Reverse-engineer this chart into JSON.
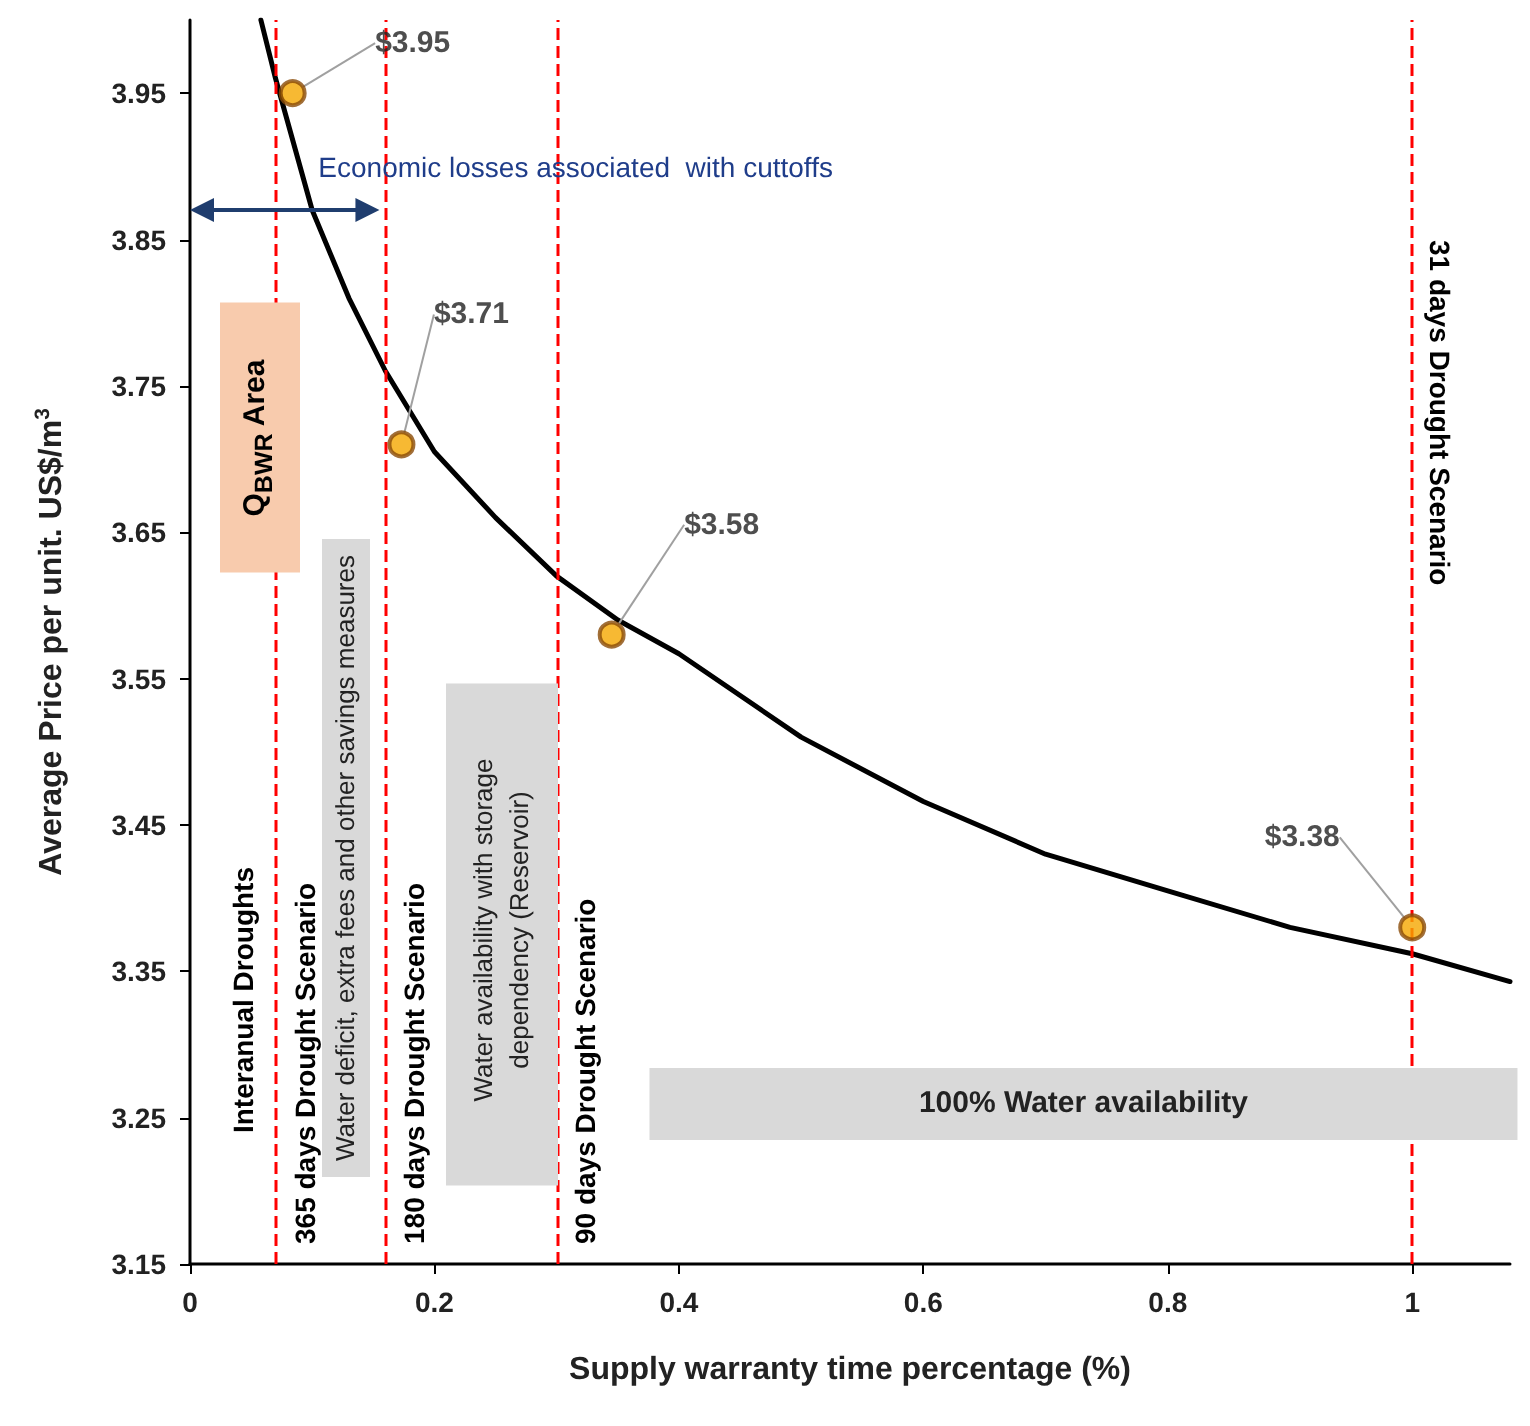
{
  "chart_data": {
    "type": "line",
    "xlabel": "Supply warranty time percentage (%)",
    "ylabel": "Average Price per unit. US$/m$^{3}$",
    "xlim": [
      0,
      1.08
    ],
    "xticks": [
      0,
      0.2,
      0.4,
      0.6,
      0.8,
      1
    ],
    "ylim": [
      3.15,
      4.0
    ],
    "yticks": [
      3.15,
      3.25,
      3.35,
      3.45,
      3.55,
      3.65,
      3.75,
      3.85,
      3.95
    ],
    "grid": false,
    "series": [
      {
        "color": "#000000",
        "marker": "none",
        "x": [
          0.058,
          0.07,
          0.1,
          0.13,
          0.16,
          0.2,
          0.25,
          0.3,
          0.35,
          0.4,
          0.5,
          0.6,
          0.7,
          0.8,
          0.9,
          1.0,
          1.08
        ],
        "values": [
          4.0,
          3.96,
          3.87,
          3.81,
          3.76,
          3.705,
          3.66,
          3.62,
          3.59,
          3.567,
          3.51,
          3.466,
          3.43,
          3.405,
          3.38,
          3.362,
          3.343
        ]
      },
      {
        "type": "scatter",
        "color": "#f5a800",
        "marker": "circle",
        "x": [
          0.084,
          0.173,
          0.345,
          1.0
        ],
        "values": [
          3.95,
          3.71,
          3.58,
          3.38
        ],
        "value_labels": [
          "$3.95",
          "$3.71",
          "$3.58",
          "$3.38"
        ]
      }
    ],
    "ref_lines": [
      {
        "axis": "x",
        "value": 0.071,
        "label": "365 days Drought Scenario",
        "color": "#ff0000",
        "line_style": "dashed"
      },
      {
        "axis": "x",
        "value": 0.16,
        "label": "180 days Drought Scenario",
        "color": "#ff0000",
        "line_style": "dashed"
      },
      {
        "axis": "x",
        "value": 0.3,
        "label": "90 days Drought Scenario",
        "color": "#ff0000",
        "line_style": "dashed"
      },
      {
        "axis": "x",
        "value": 1.0,
        "label": "31 days Drought Scenario",
        "color": "#ff0000",
        "line_style": "dashed"
      }
    ],
    "annotations": [
      "Economic losses associated  with cuttoffs",
      "Interanual Droughts",
      "Water deficit, extra fees and other savings measures",
      "Water availability with storage\ndependency (Reservoir)",
      "100% Water availability",
      "Q$_{BWR}$ Area"
    ]
  }
}
